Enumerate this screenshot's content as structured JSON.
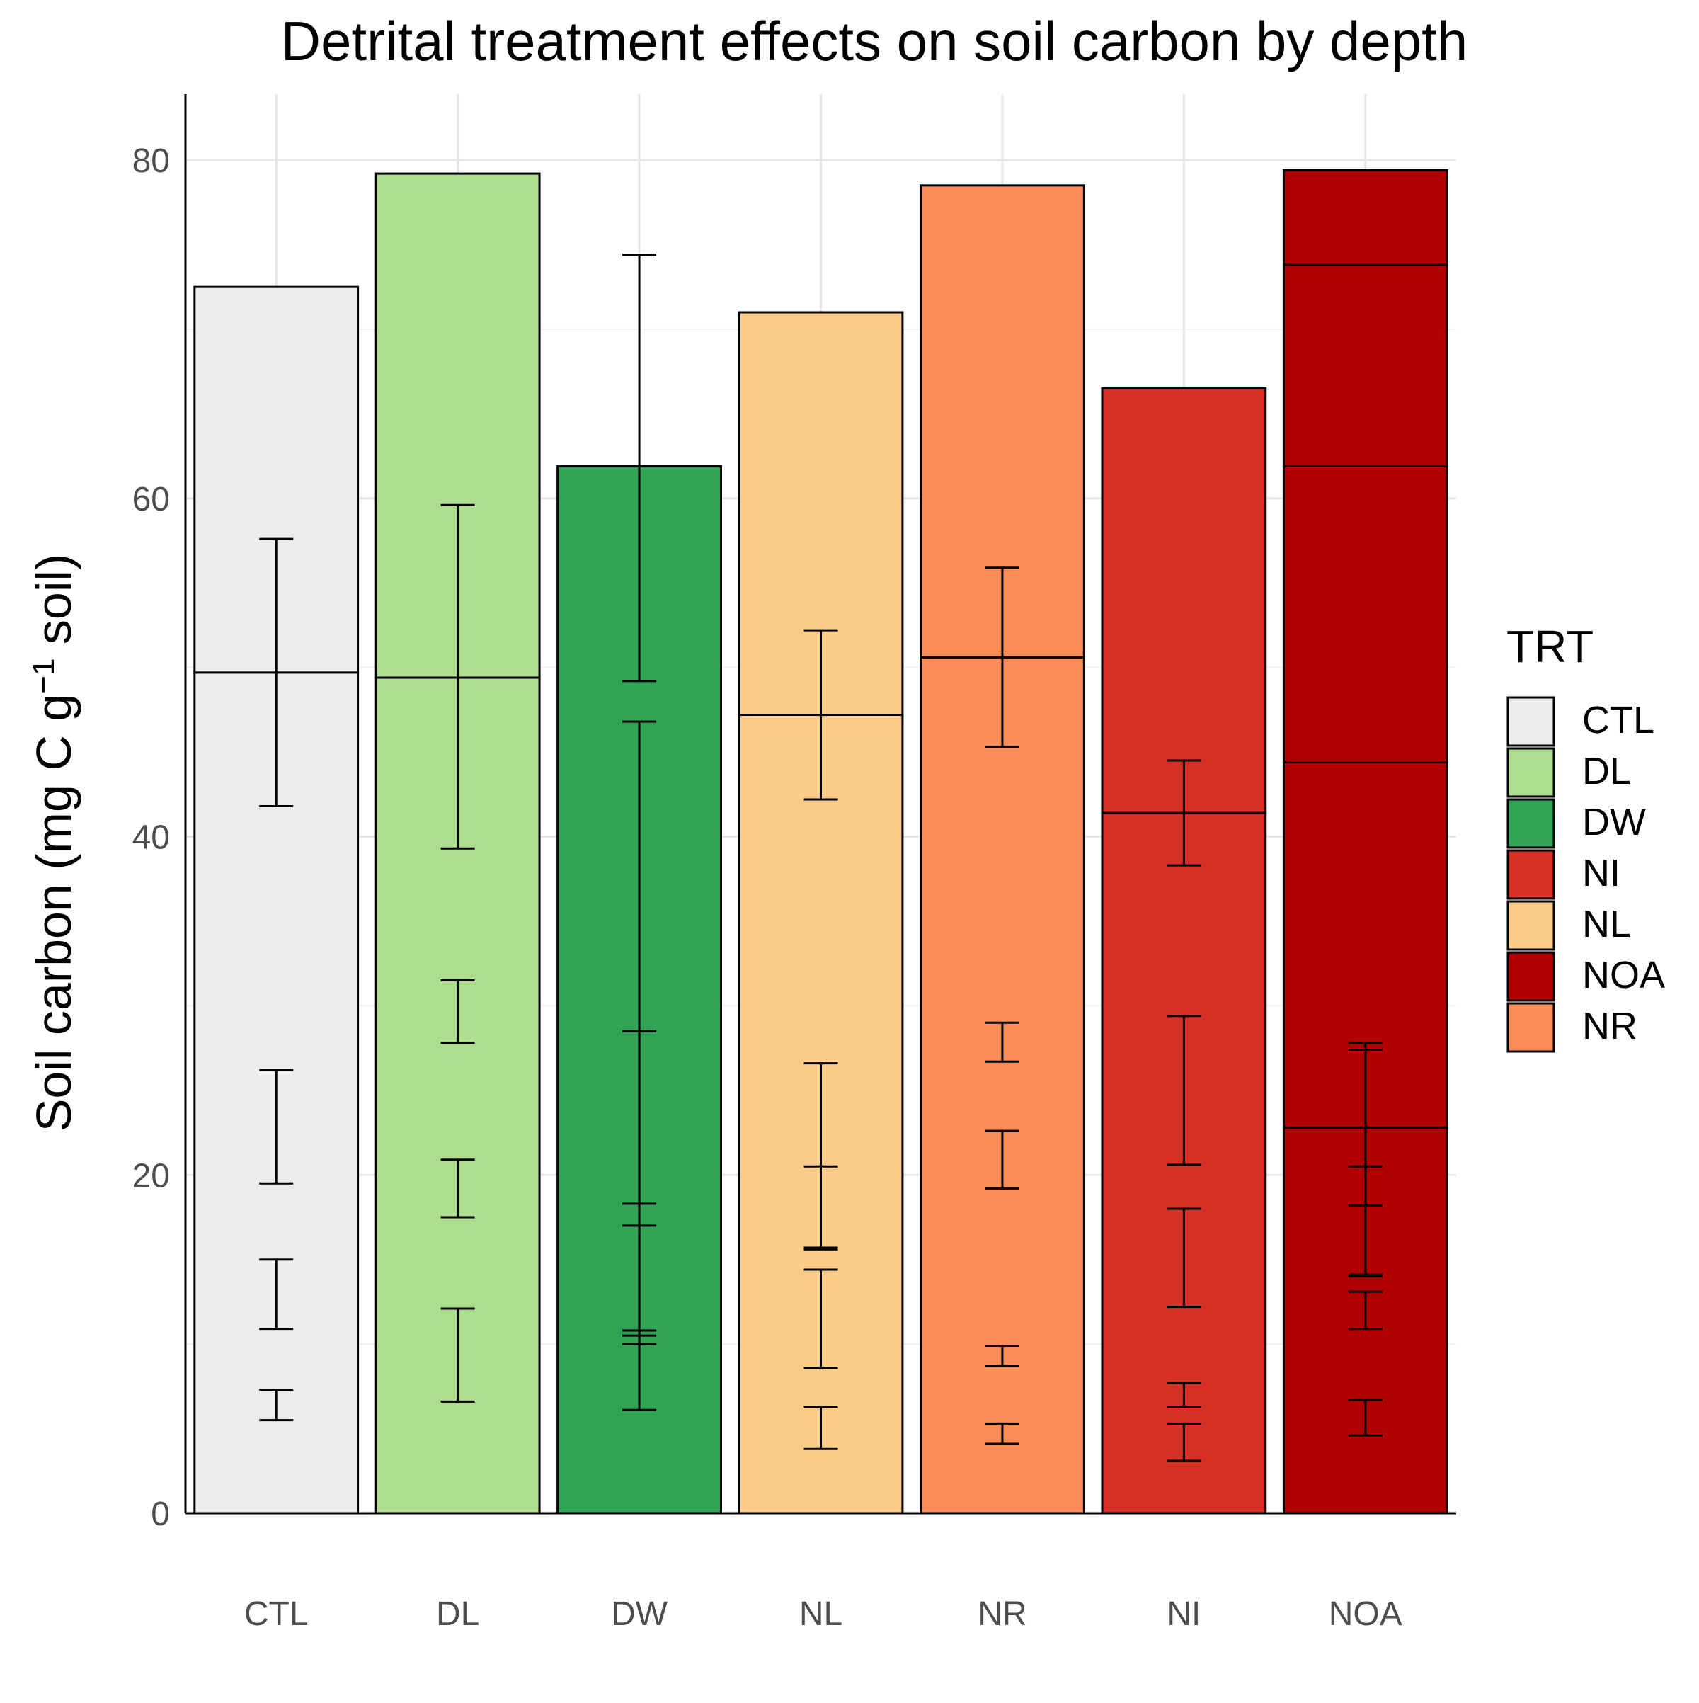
{
  "chart_data": {
    "type": "bar",
    "title": "Detrital treatment effects on soil carbon by depth",
    "xlabel": "",
    "ylabel": {
      "main": "Soil carbon (mg C g",
      "superscript": "−1",
      "suffix": " soil)"
    },
    "ylim": [
      0,
      80
    ],
    "yticks": [
      0,
      20,
      40,
      60,
      80
    ],
    "grid": true,
    "stacked": true,
    "categories": [
      "CTL",
      "DL",
      "DW",
      "NL",
      "NR",
      "NI",
      "NOA"
    ],
    "bars": [
      {
        "category": "CTL",
        "fill_key": "CTL",
        "layers": [
          49.7,
          22.8
        ],
        "errorbars": [
          {
            "mean": 49.7,
            "low": 41.8,
            "high": 57.6
          },
          {
            "mean": 21.9,
            "low": 19.5,
            "high": 26.2
          },
          {
            "mean": 12.9,
            "low": 10.9,
            "high": 15.0
          },
          {
            "mean": 6.4,
            "low": 5.5,
            "high": 7.3
          }
        ]
      },
      {
        "category": "DL",
        "fill_key": "DL",
        "layers": [
          49.4,
          29.8
        ],
        "errorbars": [
          {
            "mean": 49.4,
            "low": 39.3,
            "high": 59.6
          },
          {
            "mean": 29.6,
            "low": 27.8,
            "high": 31.5
          },
          {
            "mean": 19.2,
            "low": 17.5,
            "high": 20.9
          },
          {
            "mean": 9.8,
            "low": 6.6,
            "high": 12.1
          }
        ]
      },
      {
        "category": "DW",
        "fill_key": "DW",
        "layers": [
          61.9
        ],
        "errorbars": [
          {
            "mean": 61.9,
            "low": 49.2,
            "high": 74.4
          },
          {
            "mean": 28.5,
            "low": 18.3,
            "high": 46.8
          },
          {
            "mean": 22.3,
            "low": 10.5,
            "high": 28.5
          },
          {
            "mean": 16.9,
            "low": 10.0,
            "high": 17.0
          },
          {
            "mean": 10.5,
            "low": 6.1,
            "high": 10.8
          }
        ]
      },
      {
        "category": "NL",
        "fill_key": "NL",
        "layers": [
          47.2,
          23.8
        ],
        "errorbars": [
          {
            "mean": 47.2,
            "low": 42.2,
            "high": 52.2
          },
          {
            "mean": 21.4,
            "low": 15.7,
            "high": 26.6
          },
          {
            "mean": 20.4,
            "low": 15.6,
            "high": 20.5
          },
          {
            "mean": 14.3,
            "low": 8.6,
            "high": 14.4
          },
          {
            "mean": 6.2,
            "low": 3.8,
            "high": 6.3
          }
        ]
      },
      {
        "category": "NR",
        "fill_key": "NR",
        "layers": [
          50.6,
          27.9
        ],
        "errorbars": [
          {
            "mean": 50.6,
            "low": 45.3,
            "high": 55.9
          },
          {
            "mean": 27.9,
            "low": 26.7,
            "high": 29.0
          },
          {
            "mean": 20.9,
            "low": 19.2,
            "high": 22.6
          },
          {
            "mean": 9.3,
            "low": 8.7,
            "high": 9.9
          },
          {
            "mean": 4.7,
            "low": 4.1,
            "high": 5.3
          }
        ]
      },
      {
        "category": "NI",
        "fill_key": "NI",
        "layers": [
          41.4,
          25.1
        ],
        "errorbars": [
          {
            "mean": 41.4,
            "low": 38.3,
            "high": 44.5
          },
          {
            "mean": 25.0,
            "low": 20.6,
            "high": 29.4
          },
          {
            "mean": 15.0,
            "low": 12.2,
            "high": 18.0
          },
          {
            "mean": 7.0,
            "low": 6.3,
            "high": 7.7
          },
          {
            "mean": 4.2,
            "low": 3.1,
            "high": 5.3
          }
        ]
      },
      {
        "category": "NOA",
        "fill_key": "NOA",
        "layers": [
          22.8,
          21.6,
          17.5,
          11.9,
          5.6
        ],
        "errorbars": [
          {
            "mean": 22.8,
            "low": 18.2,
            "high": 27.8
          },
          {
            "mean": 20.5,
            "low": 14.0,
            "high": 27.4
          },
          {
            "mean": 15.3,
            "low": 14.1,
            "high": 20.5
          },
          {
            "mean": 12.0,
            "low": 10.9,
            "high": 13.1
          },
          {
            "mean": 5.7,
            "low": 4.6,
            "high": 6.7
          }
        ]
      }
    ],
    "legend": {
      "title": "TRT",
      "position": "right",
      "entries": [
        {
          "label": "CTL",
          "color": "#ececec"
        },
        {
          "label": "DL",
          "color": "#addd8e"
        },
        {
          "label": "DW",
          "color": "#31a354"
        },
        {
          "label": "NI",
          "color": "#d73027"
        },
        {
          "label": "NL",
          "color": "#fdcc8a"
        },
        {
          "label": "NOA",
          "color": "#b10000"
        },
        {
          "label": "NR",
          "color": "#fc8d59"
        }
      ]
    }
  }
}
